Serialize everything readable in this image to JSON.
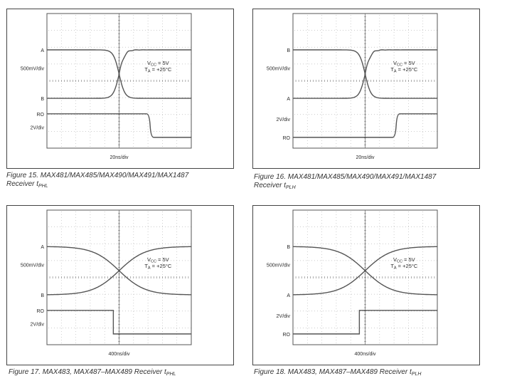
{
  "figures": [
    {
      "id": "fig15",
      "caption_line1": "Figure 15. MAX481/MAX485/MAX490/MAX491/MAX1487",
      "caption_line2_main": "Receiver t",
      "caption_line2_sub": "PHL",
      "labels": {
        "top": "A",
        "top_scale": "500mV/div",
        "mid": "B",
        "ro": "RO",
        "ro_scale": "2V/div"
      },
      "vcc": "V",
      "vcc_sub": "CC",
      "vcc_val": " = 5V",
      "ta": "T",
      "ta_sub": "A",
      "ta_val": " = +25°C",
      "xscale": "20ns/div"
    },
    {
      "id": "fig16",
      "caption_line1": "Figure 16. MAX481/MAX485/MAX490/MAX491/MAX1487",
      "caption_line2_main": "Receiver t",
      "caption_line2_sub": "PLH",
      "labels": {
        "top": "B",
        "top_scale": "500mV/div",
        "mid": "A",
        "ro": "RO",
        "ro_scale": "2V/div"
      },
      "vcc": "V",
      "vcc_sub": "CC",
      "vcc_val": " = 5V",
      "ta": "T",
      "ta_sub": "A",
      "ta_val": " = +25°C",
      "xscale": "20ns/div"
    },
    {
      "id": "fig17",
      "caption_line1": "Figure 17. MAX483, MAX487–MAX489 Receiver t",
      "caption_line1_sub": "PHL",
      "labels": {
        "top": "A",
        "top_scale": "500mV/div",
        "mid": "B",
        "ro": "RO",
        "ro_scale": "2V/div"
      },
      "vcc": "V",
      "vcc_sub": "CC",
      "vcc_val": " = 5V",
      "ta": "T",
      "ta_sub": "A",
      "ta_val": " = +25°C",
      "xscale": "400ns/div"
    },
    {
      "id": "fig18",
      "caption_line1": "Figure 18. MAX483, MAX487–MAX489 Receiver t",
      "caption_line1_sub": "PLH",
      "labels": {
        "top": "B",
        "top_scale": "500mV/div",
        "mid": "A",
        "ro": "RO",
        "ro_scale": "2V/div"
      },
      "vcc": "V",
      "vcc_sub": "CC",
      "vcc_val": " = 5V",
      "ta": "T",
      "ta_sub": "A",
      "ta_val": " = +25°C",
      "xscale": "400ns/div"
    }
  ],
  "chart_data": [
    {
      "type": "line",
      "id": "fig15",
      "x_divisions": 10,
      "y_divisions": 8,
      "grid": true,
      "series": [
        {
          "shape": "fall-fast"
        },
        {
          "shape": "rise-fast"
        },
        {
          "shape": "ro-fall",
          "transition_div": 7.1
        }
      ]
    },
    {
      "type": "line",
      "id": "fig16",
      "x_divisions": 10,
      "y_divisions": 8,
      "grid": true,
      "series": [
        {
          "shape": "fall-fast"
        },
        {
          "shape": "rise-fast"
        },
        {
          "shape": "ro-rise",
          "transition_div": 7.1
        }
      ]
    },
    {
      "type": "line",
      "id": "fig17",
      "x_divisions": 10,
      "y_divisions": 8,
      "grid": true,
      "series": [
        {
          "shape": "fall-slow"
        },
        {
          "shape": "rise-slow"
        },
        {
          "shape": "ro-fall",
          "transition_div": 4.6
        }
      ]
    },
    {
      "type": "line",
      "id": "fig18",
      "x_divisions": 10,
      "y_divisions": 8,
      "grid": true,
      "series": [
        {
          "shape": "fall-slow"
        },
        {
          "shape": "rise-slow"
        },
        {
          "shape": "ro-rise",
          "transition_div": 4.6
        }
      ]
    }
  ]
}
